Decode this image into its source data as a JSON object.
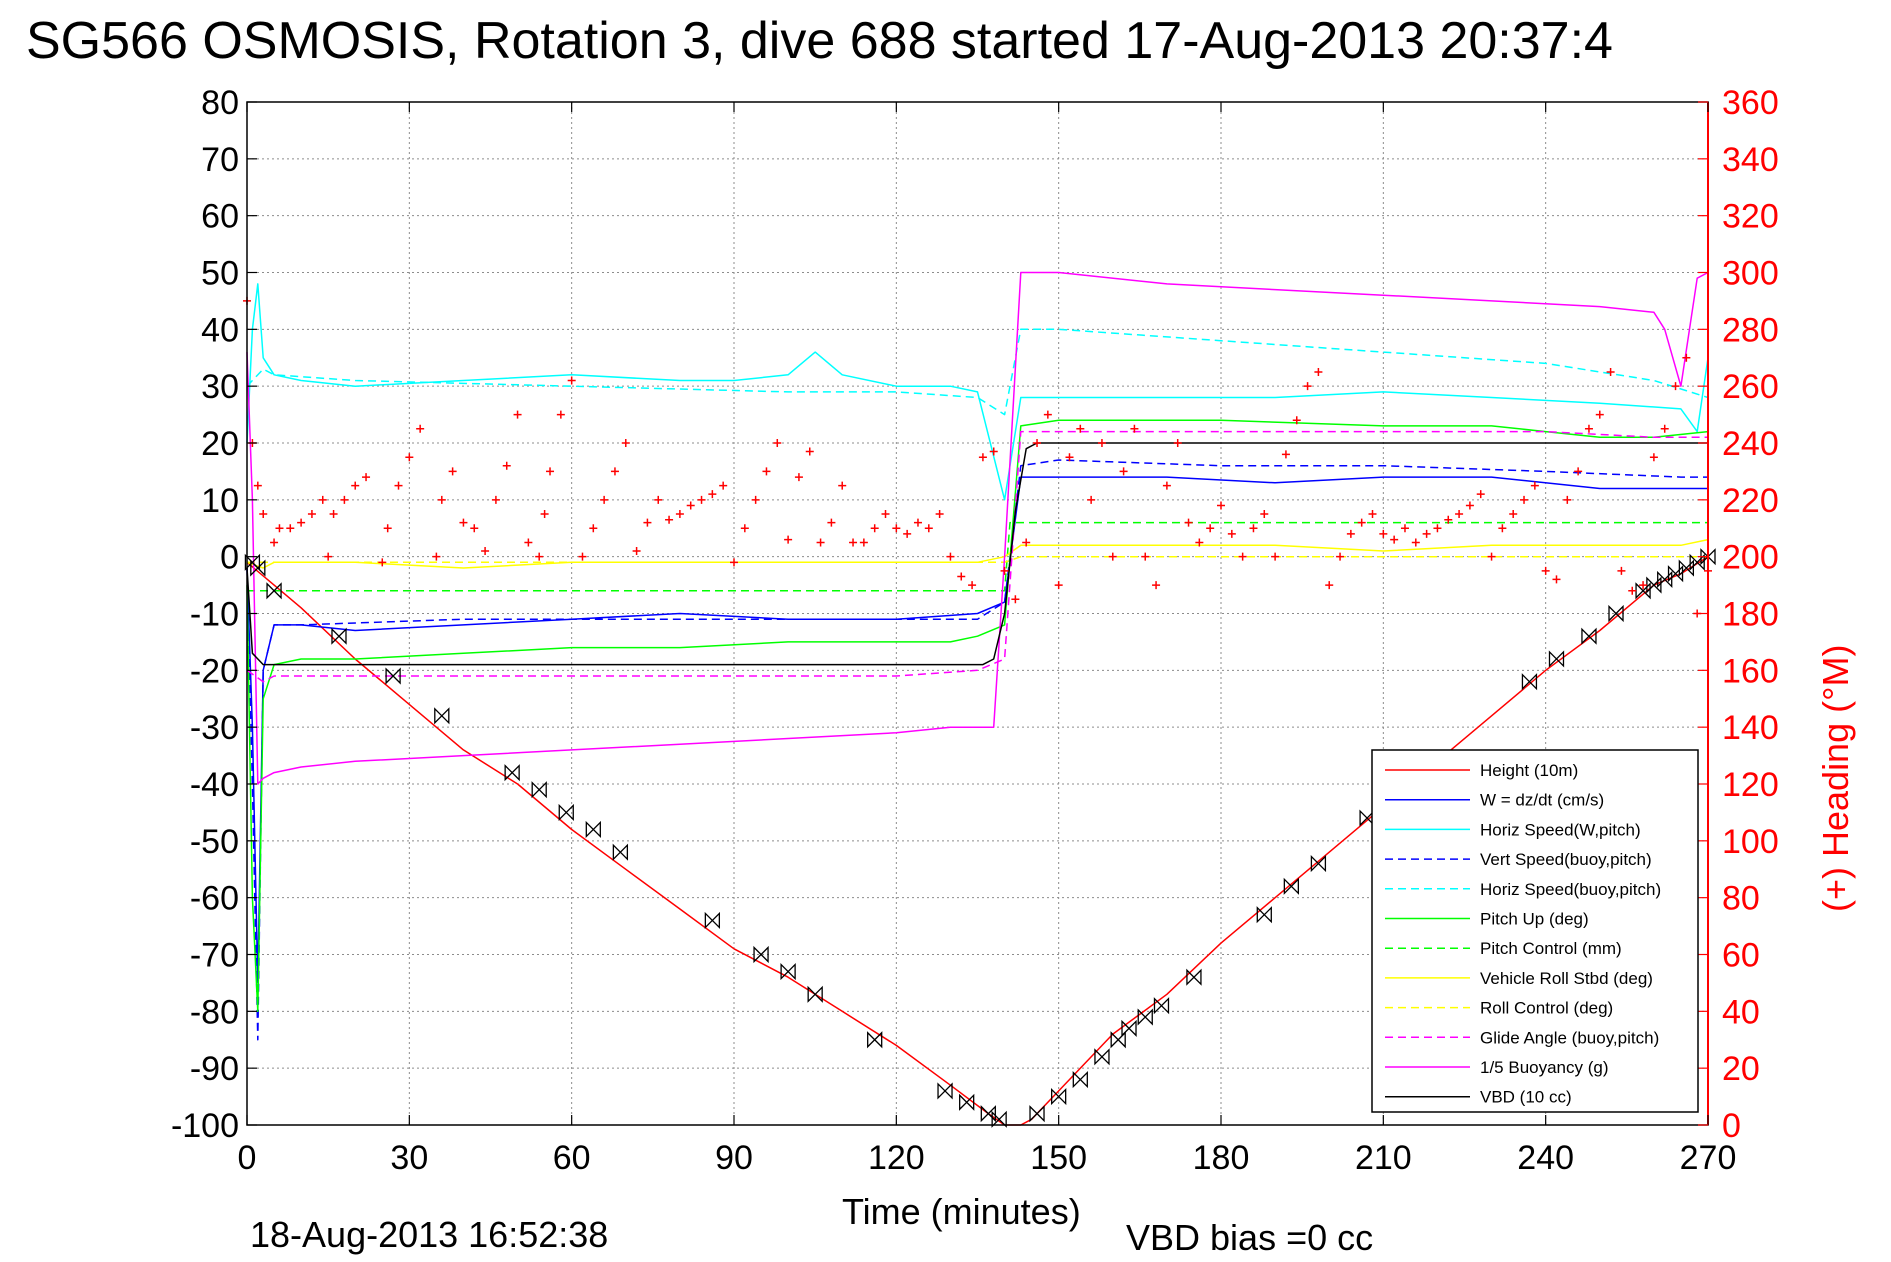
{
  "chart_data": {
    "type": "line",
    "title": "SG566 OSMOSIS, Rotation 3, dive 688 started 17-Aug-2013 20:37:4",
    "xlabel": "Time (minutes)",
    "ylabel_right": "(+) Heading (°M)",
    "xlim": [
      0,
      270
    ],
    "ylim": [
      -100,
      80
    ],
    "y2lim": [
      0,
      360
    ],
    "x_ticks": [
      "0",
      "30",
      "60",
      "90",
      "120",
      "150",
      "180",
      "210",
      "240",
      "270"
    ],
    "y_ticks": [
      "80",
      "70",
      "60",
      "50",
      "40",
      "30",
      "20",
      "10",
      "0",
      "-10",
      "-20",
      "-30",
      "-40",
      "-50",
      "-60",
      "-70",
      "-80",
      "-90",
      "-100"
    ],
    "y2_ticks": [
      "360",
      "340",
      "320",
      "300",
      "280",
      "260",
      "240",
      "220",
      "200",
      "180",
      "160",
      "140",
      "120",
      "100",
      "80",
      "60",
      "40",
      "20",
      "0"
    ],
    "grid": true,
    "legend_position": "lower-right",
    "footer_left": "18-Aug-2013 16:52:38",
    "footer_right": "VBD bias =0 cc",
    "colors": {
      "red": "#ff0000",
      "blue": "#0000ff",
      "cyan": "#00ffff",
      "green": "#00ff00",
      "yellow": "#ffff00",
      "magenta": "#ff00ff",
      "black": "#000000"
    },
    "series": [
      {
        "name": "Height (10m)",
        "color": "#ff0000",
        "style": "solid",
        "x": [
          0,
          5,
          10,
          20,
          30,
          40,
          50,
          60,
          70,
          80,
          90,
          100,
          110,
          120,
          130,
          137,
          140,
          143,
          145,
          150,
          160,
          170,
          180,
          190,
          200,
          210,
          220,
          230,
          240,
          250,
          260,
          265,
          270
        ],
        "y": [
          -1,
          -5,
          -9,
          -18,
          -26,
          -34,
          -40,
          -48,
          -55,
          -62,
          -69,
          -74,
          -80,
          -86,
          -93,
          -98,
          -100,
          -100,
          -99,
          -94,
          -84,
          -77,
          -68,
          -60,
          -52,
          -44,
          -36,
          -28,
          -20,
          -13,
          -5,
          -3,
          0
        ]
      },
      {
        "name": "W = dz/dt (cm/s)",
        "color": "#0000ff",
        "style": "solid",
        "x": [
          0,
          1,
          2,
          3,
          5,
          10,
          20,
          40,
          60,
          80,
          100,
          120,
          135,
          140,
          143,
          150,
          170,
          190,
          210,
          230,
          250,
          265,
          270
        ],
        "y": [
          -2,
          -30,
          -75,
          -20,
          -12,
          -12,
          -13,
          -12,
          -11,
          -10,
          -11,
          -11,
          -10,
          -8,
          14,
          14,
          14,
          13,
          14,
          14,
          12,
          12,
          12
        ]
      },
      {
        "name": "Horiz Speed(W,pitch)",
        "color": "#00ffff",
        "style": "solid",
        "x": [
          0,
          1,
          2,
          3,
          5,
          10,
          20,
          40,
          60,
          80,
          90,
          100,
          105,
          110,
          120,
          130,
          135,
          140,
          143,
          150,
          170,
          190,
          210,
          230,
          250,
          265,
          268,
          270
        ],
        "y": [
          20,
          40,
          48,
          35,
          32,
          31,
          30,
          31,
          32,
          31,
          31,
          32,
          36,
          32,
          30,
          30,
          29,
          10,
          28,
          28,
          28,
          28,
          29,
          28,
          27,
          26,
          22,
          35
        ]
      },
      {
        "name": "Vert Speed(buoy,pitch)",
        "color": "#0000ff",
        "style": "dashed",
        "x": [
          0,
          1,
          2,
          3,
          5,
          10,
          40,
          80,
          120,
          135,
          140,
          143,
          150,
          180,
          210,
          240,
          265,
          270
        ],
        "y": [
          -2,
          -40,
          -85,
          -20,
          -12,
          -12,
          -11,
          -11,
          -11,
          -11,
          -8,
          16,
          17,
          16,
          16,
          15,
          14,
          14
        ]
      },
      {
        "name": "Horiz Speed(buoy,pitch)",
        "color": "#00ffff",
        "style": "dashed",
        "x": [
          0,
          3,
          5,
          20,
          60,
          100,
          120,
          135,
          140,
          143,
          150,
          180,
          210,
          240,
          260,
          270
        ],
        "y": [
          30,
          33,
          32,
          31,
          30,
          29,
          29,
          28,
          25,
          40,
          40,
          38,
          36,
          34,
          31,
          28
        ]
      },
      {
        "name": "Pitch Up (deg)",
        "color": "#00ff00",
        "style": "solid",
        "x": [
          0,
          1,
          2,
          3,
          5,
          10,
          20,
          40,
          60,
          80,
          100,
          120,
          130,
          135,
          140,
          143,
          150,
          180,
          210,
          230,
          240,
          250,
          260,
          270
        ],
        "y": [
          -5,
          -60,
          -80,
          -25,
          -19,
          -18,
          -18,
          -17,
          -16,
          -16,
          -15,
          -15,
          -15,
          -14,
          -12,
          23,
          24,
          24,
          23,
          23,
          22,
          21,
          21,
          22
        ]
      },
      {
        "name": "Pitch Control (mm)",
        "color": "#00ff00",
        "style": "dashed",
        "x": [
          0,
          2,
          3,
          140,
          141,
          143,
          270
        ],
        "y": [
          -6,
          -6,
          -6,
          -6,
          6,
          6,
          6
        ]
      },
      {
        "name": "Vehicle Roll Stbd (deg)",
        "color": "#ffff00",
        "style": "solid",
        "x": [
          0,
          3,
          5,
          10,
          20,
          40,
          60,
          80,
          100,
          120,
          135,
          140,
          143,
          150,
          170,
          190,
          210,
          230,
          250,
          265,
          270
        ],
        "y": [
          -1,
          -2,
          -1,
          -1,
          -1,
          -2,
          -1,
          -1,
          -1,
          -1,
          -1,
          0,
          2,
          2,
          2,
          2,
          1,
          2,
          2,
          2,
          3
        ]
      },
      {
        "name": "Roll Control (deg)",
        "color": "#ffff00",
        "style": "dashed",
        "x": [
          0,
          140,
          143,
          270
        ],
        "y": [
          -1,
          -1,
          0,
          0
        ]
      },
      {
        "name": "Glide Angle (buoy,pitch)",
        "color": "#ff00ff",
        "style": "dashed",
        "x": [
          0,
          3,
          5,
          20,
          60,
          100,
          120,
          135,
          140,
          143,
          150,
          180,
          210,
          240,
          260,
          270
        ],
        "y": [
          -20,
          -22,
          -21,
          -21,
          -21,
          -21,
          -21,
          -20,
          -18,
          22,
          22,
          22,
          22,
          22,
          21,
          21
        ]
      },
      {
        "name": "1/5 Buoyancy (g)",
        "color": "#ff00ff",
        "style": "solid",
        "x": [
          0,
          1,
          2,
          3,
          5,
          10,
          20,
          40,
          60,
          80,
          100,
          120,
          130,
          138,
          140,
          143,
          150,
          170,
          190,
          210,
          230,
          250,
          260,
          262,
          265,
          268,
          270
        ],
        "y": [
          36,
          10,
          -40,
          -39,
          -38,
          -37,
          -36,
          -35,
          -34,
          -33,
          -32,
          -31,
          -30,
          -30,
          0,
          50,
          50,
          48,
          47,
          46,
          45,
          44,
          43,
          40,
          30,
          49,
          50
        ]
      },
      {
        "name": "VBD (10 cc)",
        "color": "#000000",
        "style": "solid",
        "x": [
          0,
          1,
          3,
          5,
          130,
          136,
          138,
          140,
          142,
          144,
          146,
          268,
          270
        ],
        "y": [
          -2,
          -17,
          -19,
          -19,
          -19,
          -19,
          -18,
          -10,
          8,
          19,
          20,
          20,
          20
        ]
      }
    ],
    "heading_series": {
      "name": "(+) Heading (°M)",
      "color": "#ff0000",
      "marker": "+",
      "axis": "right",
      "x": [
        0,
        1,
        2,
        3,
        5,
        6,
        8,
        10,
        12,
        14,
        15,
        16,
        18,
        20,
        22,
        25,
        26,
        28,
        30,
        32,
        35,
        36,
        38,
        40,
        42,
        44,
        46,
        48,
        50,
        52,
        54,
        55,
        56,
        58,
        60,
        62,
        64,
        66,
        68,
        70,
        72,
        74,
        76,
        78,
        80,
        82,
        84,
        86,
        88,
        90,
        92,
        94,
        96,
        98,
        100,
        102,
        104,
        106,
        108,
        110,
        112,
        114,
        116,
        118,
        120,
        122,
        124,
        126,
        128,
        130,
        132,
        134,
        136,
        138,
        140,
        142,
        144,
        146,
        148,
        150,
        152,
        154,
        156,
        158,
        160,
        162,
        164,
        166,
        168,
        170,
        172,
        174,
        176,
        178,
        180,
        182,
        184,
        186,
        188,
        190,
        192,
        194,
        196,
        198,
        200,
        202,
        204,
        206,
        208,
        210,
        212,
        214,
        216,
        218,
        220,
        222,
        224,
        226,
        228,
        230,
        232,
        234,
        236,
        238,
        240,
        242,
        244,
        246,
        248,
        250,
        252,
        254,
        256,
        258,
        260,
        262,
        264,
        266,
        268,
        270
      ],
      "y": [
        290,
        240,
        225,
        215,
        205,
        210,
        210,
        212,
        215,
        220,
        200,
        215,
        220,
        225,
        228,
        198,
        210,
        225,
        235,
        245,
        200,
        220,
        230,
        212,
        210,
        202,
        220,
        232,
        250,
        205,
        200,
        215,
        230,
        250,
        262,
        200,
        210,
        220,
        230,
        240,
        202,
        212,
        220,
        213,
        215,
        218,
        220,
        222,
        225,
        198,
        210,
        220,
        230,
        240,
        206,
        228,
        237,
        205,
        212,
        225,
        205,
        205,
        210,
        215,
        210,
        208,
        212,
        210,
        215,
        200,
        193,
        190,
        235,
        237,
        195,
        185,
        205,
        240,
        250,
        190,
        235,
        245,
        220,
        240,
        200,
        230,
        245,
        200,
        190,
        225,
        240,
        212,
        205,
        210,
        218,
        208,
        200,
        210,
        215,
        200,
        236,
        248,
        260,
        265,
        190,
        200,
        208,
        212,
        215,
        208,
        206,
        210,
        205,
        208,
        210,
        213,
        215,
        218,
        222,
        200,
        210,
        215,
        220,
        225,
        195,
        192,
        220,
        230,
        245,
        250,
        265,
        195,
        188,
        190,
        235,
        245,
        260,
        270,
        180,
        195
      ]
    },
    "vbd_markers": {
      "name": "VBD markers",
      "color": "#000000",
      "marker": "bowtie",
      "x": [
        1,
        2,
        5,
        17,
        27,
        36,
        49,
        54,
        59,
        64,
        69,
        86,
        95,
        100,
        105,
        116,
        129,
        133,
        137,
        139,
        146,
        150,
        154,
        158,
        161,
        163,
        166,
        169,
        175,
        188,
        193,
        198,
        207,
        237,
        242,
        248,
        253,
        258,
        260,
        262,
        264,
        266,
        268,
        270
      ],
      "y": [
        -1,
        -2,
        -6,
        -14,
        -21,
        -28,
        -38,
        -41,
        -45,
        -48,
        -52,
        -64,
        -70,
        -73,
        -77,
        -85,
        -94,
        -96,
        -98,
        -99,
        -98,
        -95,
        -92,
        -88,
        -85,
        -83,
        -81,
        -79,
        -74,
        -63,
        -58,
        -54,
        -46,
        -22,
        -18,
        -14,
        -10,
        -6,
        -5,
        -4,
        -3,
        -2,
        -1,
        0
      ]
    }
  }
}
